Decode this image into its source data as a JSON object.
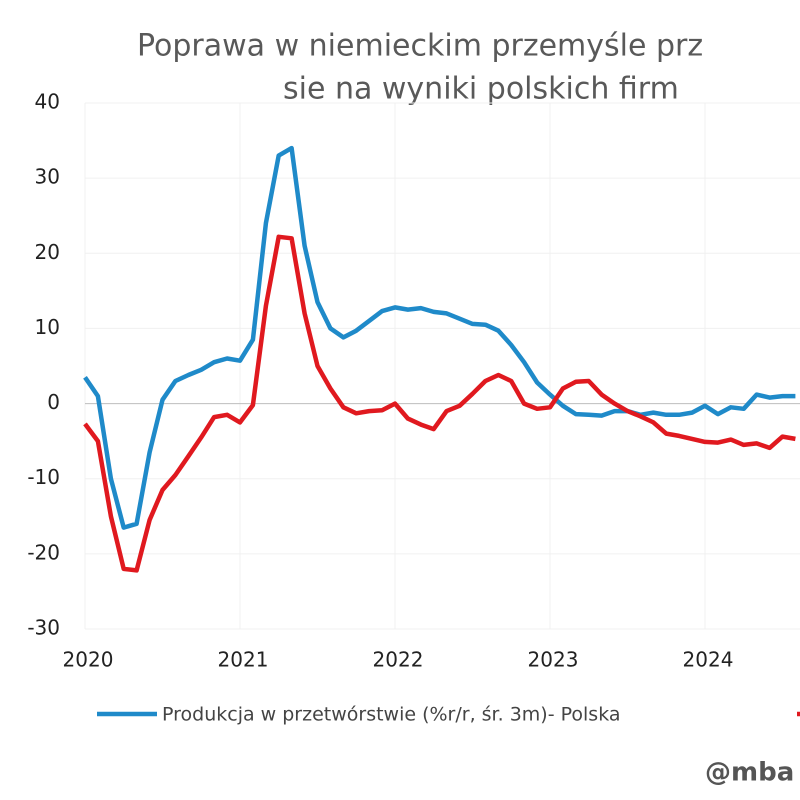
{
  "chart_data": {
    "type": "line",
    "title_lines": [
      "Poprawa w niemieckim przemyśle prz",
      "sie na wyniki polskich firm"
    ],
    "watermark": "@mba",
    "x": [
      2020,
      2020.083,
      2020.167,
      2020.25,
      2020.333,
      2020.417,
      2020.5,
      2020.583,
      2020.667,
      2020.75,
      2020.833,
      2020.917,
      2021,
      2021.083,
      2021.167,
      2021.25,
      2021.333,
      2021.417,
      2021.5,
      2021.583,
      2021.667,
      2021.75,
      2021.833,
      2021.917,
      2022,
      2022.083,
      2022.167,
      2022.25,
      2022.333,
      2022.417,
      2022.5,
      2022.583,
      2022.667,
      2022.75,
      2022.833,
      2022.917,
      2023,
      2023.083,
      2023.167,
      2023.25,
      2023.333,
      2023.417,
      2023.5,
      2023.583,
      2023.667,
      2023.75,
      2023.833,
      2023.917,
      2024,
      2024.083,
      2024.167,
      2024.25,
      2024.333,
      2024.417,
      2024.5,
      2024.583
    ],
    "series": [
      {
        "name": "Produkcja w przetwórstwie (%r/r, śr. 3m)- Polska",
        "color": "#1f8ac9",
        "values": [
          3.5,
          1,
          -10,
          -16.5,
          -16,
          -6.5,
          0.5,
          3,
          3.8,
          4.5,
          5.5,
          6,
          5.7,
          8.5,
          24,
          33,
          34,
          21,
          13.5,
          10,
          8.8,
          9.7,
          11,
          12.3,
          12.8,
          12.5,
          12.7,
          12.2,
          12,
          11.3,
          10.6,
          10.5,
          9.7,
          7.8,
          5.5,
          2.8,
          1.2,
          -0.3,
          -1.4,
          -1.5,
          -1.6,
          -1,
          -1,
          -1.5,
          -1.2,
          -1.5,
          -1.5,
          -1.2,
          -0.3,
          -1.4,
          -0.5,
          -0.7,
          1.2,
          0.8,
          1,
          1
        ]
      },
      {
        "color": "#e0191f",
        "values": [
          -2.7,
          -5,
          -15,
          -22,
          -22.2,
          -15.5,
          -11.5,
          -9.5,
          -7,
          -4.5,
          -1.8,
          -1.5,
          -2.5,
          -0.2,
          13,
          22.2,
          22,
          12,
          5,
          2,
          -0.5,
          -1.3,
          -1,
          -0.9,
          0,
          -2,
          -2.8,
          -3.4,
          -1,
          -0.3,
          1.3,
          3,
          3.8,
          3,
          0,
          -0.7,
          -0.5,
          2,
          2.9,
          3,
          1.2,
          0,
          -1,
          -1.7,
          -2.5,
          -4,
          -4.3,
          -4.7,
          -5.1,
          -5.2,
          -4.8,
          -5.5,
          -5.3,
          -5.9,
          -4.4,
          -4.7
        ]
      }
    ],
    "xlim": [
      2020,
      2024.613
    ],
    "xticks": [
      2020,
      2021,
      2022,
      2023,
      2024
    ],
    "ylim": [
      -30,
      40
    ],
    "yticks": [
      -30,
      -20,
      -10,
      0,
      10,
      20,
      30,
      40
    ],
    "grid": true
  }
}
